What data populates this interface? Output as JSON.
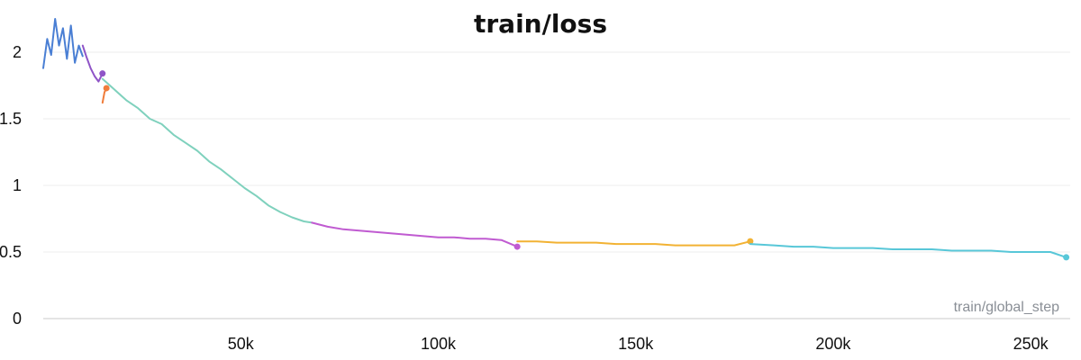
{
  "chart_data": {
    "type": "line",
    "title": "train/loss",
    "xlabel": "train/global_step",
    "ylabel": "",
    "xlim": [
      0,
      260000
    ],
    "ylim": [
      0,
      2.25
    ],
    "xticks": [
      50000,
      100000,
      150000,
      200000,
      250000
    ],
    "xtick_labels": [
      "50k",
      "100k",
      "150k",
      "200k",
      "250k"
    ],
    "yticks": [
      0,
      0.5,
      1,
      1.5,
      2
    ],
    "ytick_labels": [
      "0",
      "0.5",
      "1",
      "1.5",
      "2"
    ],
    "grid": true,
    "legend": "none",
    "series": [
      {
        "color": "#4a7fd4",
        "x": [
          0,
          1000,
          2000,
          3000,
          4000,
          5000,
          6000,
          7000,
          8000,
          9000,
          10000
        ],
        "y": [
          1.88,
          2.1,
          1.98,
          2.25,
          2.05,
          2.18,
          1.95,
          2.2,
          1.92,
          2.05,
          1.97
        ]
      },
      {
        "color": "#8f54c7",
        "x": [
          10000,
          11000,
          12000,
          13000,
          14000,
          15000
        ],
        "y": [
          2.05,
          1.96,
          1.88,
          1.82,
          1.78,
          1.84
        ],
        "end_marker": true
      },
      {
        "color": "#f07c3a",
        "x": [
          15000,
          15500,
          16000
        ],
        "y": [
          1.62,
          1.7,
          1.73
        ],
        "end_marker": true
      },
      {
        "color": "#7fd1bd",
        "x": [
          15000,
          18000,
          21000,
          24000,
          27000,
          30000,
          33000,
          36000,
          39000,
          42000,
          45000,
          48000,
          51000,
          54000,
          57000,
          60000,
          63000,
          66000,
          68000
        ],
        "y": [
          1.8,
          1.72,
          1.64,
          1.58,
          1.5,
          1.46,
          1.38,
          1.32,
          1.26,
          1.18,
          1.12,
          1.05,
          0.98,
          0.92,
          0.85,
          0.8,
          0.76,
          0.73,
          0.72
        ]
      },
      {
        "color": "#c05bd1",
        "x": [
          68000,
          72000,
          76000,
          80000,
          84000,
          88000,
          92000,
          96000,
          100000,
          104000,
          108000,
          112000,
          116000,
          120000
        ],
        "y": [
          0.72,
          0.69,
          0.67,
          0.66,
          0.65,
          0.64,
          0.63,
          0.62,
          0.61,
          0.61,
          0.6,
          0.6,
          0.59,
          0.54
        ],
        "end_marker": true
      },
      {
        "color": "#f2b233",
        "x": [
          120000,
          125000,
          130000,
          135000,
          140000,
          145000,
          150000,
          155000,
          160000,
          165000,
          170000,
          175000,
          179000
        ],
        "y": [
          0.58,
          0.58,
          0.57,
          0.57,
          0.57,
          0.56,
          0.56,
          0.56,
          0.55,
          0.55,
          0.55,
          0.55,
          0.58
        ],
        "end_marker": true
      },
      {
        "color": "#58c7d8",
        "x": [
          179000,
          185000,
          190000,
          195000,
          200000,
          205000,
          210000,
          215000,
          220000,
          225000,
          230000,
          235000,
          240000,
          245000,
          250000,
          255000,
          259000
        ],
        "y": [
          0.56,
          0.55,
          0.54,
          0.54,
          0.53,
          0.53,
          0.53,
          0.52,
          0.52,
          0.52,
          0.51,
          0.51,
          0.51,
          0.5,
          0.5,
          0.5,
          0.46
        ],
        "end_marker": true
      }
    ]
  }
}
